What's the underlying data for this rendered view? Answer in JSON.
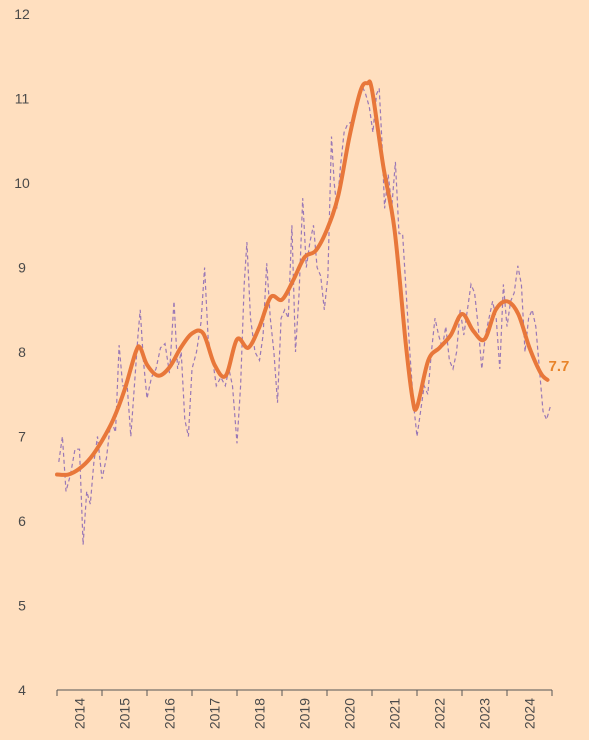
{
  "chart_data": {
    "type": "line",
    "title": "",
    "xlabel": "",
    "ylabel": "",
    "ylim": [
      4,
      12
    ],
    "xlim": [
      2014,
      2025
    ],
    "y_ticks": [
      4,
      5,
      6,
      7,
      8,
      9,
      10,
      11,
      12
    ],
    "x_ticks": [
      2014,
      2015,
      2016,
      2017,
      2018,
      2019,
      2020,
      2021,
      2022,
      2023,
      2024
    ],
    "x_tick_labels": [
      "2014",
      "2015",
      "2016",
      "2017",
      "2018",
      "2019",
      "2020",
      "2021",
      "2022",
      "2023",
      "2024"
    ],
    "y_tick_labels": [
      "4",
      "5",
      "6",
      "7",
      "8",
      "9",
      "10",
      "11",
      "12"
    ],
    "grid": false,
    "end_label": "7.7",
    "colors": {
      "background": "#FFDFBF",
      "trend": "#E8773A",
      "monthly": "#9A78B6",
      "end_label": "#E8842A",
      "axis": "#555555"
    },
    "series": [
      {
        "style": "dashed",
        "points": [
          [
            2014.04,
            6.7
          ],
          [
            2014.12,
            7.0
          ],
          [
            2014.2,
            6.35
          ],
          [
            2014.3,
            6.55
          ],
          [
            2014.4,
            6.85
          ],
          [
            2014.5,
            6.85
          ],
          [
            2014.58,
            5.72
          ],
          [
            2014.66,
            6.35
          ],
          [
            2014.74,
            6.2
          ],
          [
            2014.82,
            6.7
          ],
          [
            2014.9,
            7.0
          ],
          [
            2015.0,
            6.5
          ],
          [
            2015.1,
            6.75
          ],
          [
            2015.2,
            7.2
          ],
          [
            2015.3,
            7.05
          ],
          [
            2015.38,
            8.08
          ],
          [
            2015.46,
            7.6
          ],
          [
            2015.56,
            7.6
          ],
          [
            2015.64,
            7.0
          ],
          [
            2015.72,
            7.6
          ],
          [
            2015.8,
            8.2
          ],
          [
            2015.85,
            8.5
          ],
          [
            2015.92,
            7.9
          ],
          [
            2016.0,
            7.45
          ],
          [
            2016.1,
            7.7
          ],
          [
            2016.2,
            7.8
          ],
          [
            2016.3,
            8.05
          ],
          [
            2016.4,
            8.1
          ],
          [
            2016.5,
            7.75
          ],
          [
            2016.6,
            8.6
          ],
          [
            2016.68,
            7.8
          ],
          [
            2016.76,
            8.0
          ],
          [
            2016.84,
            7.2
          ],
          [
            2016.92,
            7.0
          ],
          [
            2017.0,
            7.8
          ],
          [
            2017.1,
            8.0
          ],
          [
            2017.2,
            8.35
          ],
          [
            2017.28,
            9.0
          ],
          [
            2017.36,
            8.15
          ],
          [
            2017.46,
            7.9
          ],
          [
            2017.54,
            7.6
          ],
          [
            2017.64,
            7.7
          ],
          [
            2017.74,
            7.6
          ],
          [
            2017.82,
            7.8
          ],
          [
            2017.9,
            7.6
          ],
          [
            2018.0,
            6.92
          ],
          [
            2018.08,
            7.6
          ],
          [
            2018.16,
            8.8
          ],
          [
            2018.22,
            9.3
          ],
          [
            2018.3,
            8.4
          ],
          [
            2018.4,
            8.0
          ],
          [
            2018.5,
            7.9
          ],
          [
            2018.58,
            8.2
          ],
          [
            2018.66,
            9.05
          ],
          [
            2018.74,
            8.4
          ],
          [
            2018.82,
            8.0
          ],
          [
            2018.9,
            7.4
          ],
          [
            2018.98,
            8.4
          ],
          [
            2019.06,
            8.5
          ],
          [
            2019.14,
            8.4
          ],
          [
            2019.22,
            9.5
          ],
          [
            2019.3,
            8.0
          ],
          [
            2019.38,
            8.7
          ],
          [
            2019.46,
            9.82
          ],
          [
            2019.54,
            9.0
          ],
          [
            2019.62,
            9.3
          ],
          [
            2019.7,
            9.5
          ],
          [
            2019.78,
            9.0
          ],
          [
            2019.86,
            8.9
          ],
          [
            2019.94,
            8.5
          ],
          [
            2020.02,
            8.9
          ],
          [
            2020.1,
            10.55
          ],
          [
            2020.16,
            10.0
          ],
          [
            2020.22,
            9.7
          ],
          [
            2020.3,
            10.2
          ],
          [
            2020.38,
            10.6
          ],
          [
            2020.46,
            10.7
          ],
          [
            2020.54,
            10.72
          ],
          [
            2020.62,
            10.9
          ],
          [
            2020.7,
            11.0
          ],
          [
            2020.78,
            11.15
          ],
          [
            2020.86,
            11.05
          ],
          [
            2020.94,
            10.9
          ],
          [
            2021.02,
            10.6
          ],
          [
            2021.1,
            11.05
          ],
          [
            2021.16,
            11.12
          ],
          [
            2021.22,
            10.5
          ],
          [
            2021.28,
            9.7
          ],
          [
            2021.36,
            10.1
          ],
          [
            2021.44,
            9.72
          ],
          [
            2021.52,
            10.25
          ],
          [
            2021.6,
            9.4
          ],
          [
            2021.68,
            9.4
          ],
          [
            2021.76,
            8.7
          ],
          [
            2021.84,
            8.0
          ],
          [
            2021.92,
            7.4
          ],
          [
            2022.0,
            7.0
          ],
          [
            2022.08,
            7.3
          ],
          [
            2022.16,
            7.6
          ],
          [
            2022.24,
            7.5
          ],
          [
            2022.32,
            8.0
          ],
          [
            2022.4,
            8.4
          ],
          [
            2022.48,
            8.2
          ],
          [
            2022.56,
            8.05
          ],
          [
            2022.64,
            8.3
          ],
          [
            2022.72,
            7.9
          ],
          [
            2022.8,
            7.8
          ],
          [
            2022.88,
            8.0
          ],
          [
            2022.96,
            8.5
          ],
          [
            2023.04,
            8.2
          ],
          [
            2023.12,
            8.5
          ],
          [
            2023.2,
            8.8
          ],
          [
            2023.28,
            8.7
          ],
          [
            2023.36,
            8.3
          ],
          [
            2023.44,
            7.8
          ],
          [
            2023.52,
            8.2
          ],
          [
            2023.6,
            8.4
          ],
          [
            2023.68,
            8.6
          ],
          [
            2023.76,
            8.4
          ],
          [
            2023.84,
            7.8
          ],
          [
            2023.92,
            8.8
          ],
          [
            2024.0,
            8.3
          ],
          [
            2024.08,
            8.6
          ],
          [
            2024.16,
            8.7
          ],
          [
            2024.24,
            9.02
          ],
          [
            2024.32,
            8.8
          ],
          [
            2024.4,
            8.0
          ],
          [
            2024.48,
            8.4
          ],
          [
            2024.56,
            8.5
          ],
          [
            2024.64,
            8.3
          ],
          [
            2024.72,
            7.8
          ],
          [
            2024.8,
            7.3
          ],
          [
            2024.88,
            7.2
          ],
          [
            2024.96,
            7.35
          ]
        ]
      },
      {
        "style": "solid",
        "points": [
          [
            2014.0,
            6.55
          ],
          [
            2014.25,
            6.55
          ],
          [
            2014.5,
            6.62
          ],
          [
            2014.75,
            6.75
          ],
          [
            2015.0,
            6.95
          ],
          [
            2015.25,
            7.2
          ],
          [
            2015.5,
            7.55
          ],
          [
            2015.75,
            8.0
          ],
          [
            2015.85,
            8.05
          ],
          [
            2016.0,
            7.85
          ],
          [
            2016.25,
            7.72
          ],
          [
            2016.5,
            7.82
          ],
          [
            2016.75,
            8.05
          ],
          [
            2017.0,
            8.22
          ],
          [
            2017.25,
            8.22
          ],
          [
            2017.5,
            7.85
          ],
          [
            2017.75,
            7.72
          ],
          [
            2018.0,
            8.15
          ],
          [
            2018.25,
            8.05
          ],
          [
            2018.5,
            8.3
          ],
          [
            2018.75,
            8.65
          ],
          [
            2019.0,
            8.62
          ],
          [
            2019.25,
            8.85
          ],
          [
            2019.5,
            9.12
          ],
          [
            2019.75,
            9.2
          ],
          [
            2020.0,
            9.45
          ],
          [
            2020.25,
            9.85
          ],
          [
            2020.5,
            10.55
          ],
          [
            2020.75,
            11.1
          ],
          [
            2020.9,
            11.18
          ],
          [
            2021.0,
            11.1
          ],
          [
            2021.25,
            10.2
          ],
          [
            2021.5,
            9.45
          ],
          [
            2021.75,
            8.1
          ],
          [
            2021.9,
            7.45
          ],
          [
            2022.0,
            7.35
          ],
          [
            2022.25,
            7.9
          ],
          [
            2022.5,
            8.05
          ],
          [
            2022.75,
            8.2
          ],
          [
            2023.0,
            8.45
          ],
          [
            2023.25,
            8.25
          ],
          [
            2023.5,
            8.15
          ],
          [
            2023.75,
            8.5
          ],
          [
            2024.0,
            8.6
          ],
          [
            2024.25,
            8.45
          ],
          [
            2024.5,
            8.05
          ],
          [
            2024.75,
            7.75
          ],
          [
            2024.9,
            7.67
          ]
        ]
      }
    ]
  }
}
